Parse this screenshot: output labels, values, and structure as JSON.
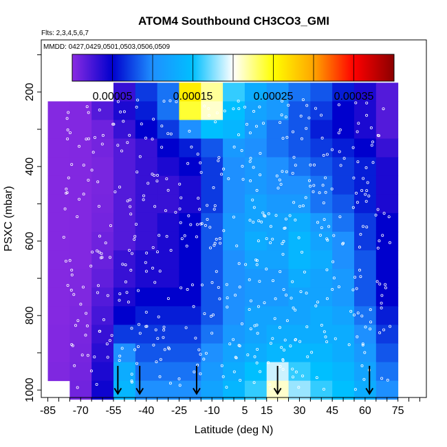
{
  "chart_data": {
    "type": "heatmap",
    "title": "ATOM4 Southbound CH3CO3_GMI",
    "annotations": {
      "flights": "Flts: 2,3,4,5,6,7",
      "dates": "MMDD: 0427,0429,0501,0503,0506,0509"
    },
    "xlabel": "Latitude (deg N)",
    "ylabel": "PSXC (mbar)",
    "xlim": [
      -88,
      88
    ],
    "ylim": [
      1020,
      60
    ],
    "x_ticks": [
      "-85",
      "-70",
      "-55",
      "-40",
      "-25",
      "-10",
      "5",
      "15",
      "30",
      "45",
      "60",
      "75"
    ],
    "y_ticks": [
      "200",
      "400",
      "600",
      "800",
      "1000"
    ],
    "colorbar": {
      "min": 0,
      "max": 0.0004,
      "tick_labels": [
        "0.00005",
        "0.00015",
        "0.00025",
        "0.00035"
      ],
      "colors": [
        "#8a2be2",
        "#0000cd",
        "#1e90ff",
        "#00bfff",
        "#ffffff",
        "#ffff00",
        "#ffa500",
        "#ff0000",
        "#8b0000"
      ]
    },
    "arrow_latitudes": [
      -53,
      -43,
      -17,
      20,
      62
    ],
    "pressure_levels": [
      200,
      250,
      300,
      350,
      400,
      450,
      500,
      550,
      600,
      650,
      700,
      750,
      800,
      850,
      900,
      950,
      1000
    ],
    "latitudes": [
      -80,
      -70,
      -60,
      -50,
      -40,
      -30,
      -20,
      -10,
      0,
      10,
      20,
      30,
      40,
      50,
      60,
      70
    ],
    "values": [
      [
        null,
        null,
        null,
        3e-05,
        7e-05,
        9e-05,
        0.00026,
        0.00022,
        0.00016,
        0.00013,
        0.00011,
        9e-05,
        8e-05,
        6e-05,
        4e-05,
        2e-05
      ],
      [
        2e-06,
        3e-06,
        2e-05,
        4e-05,
        6e-05,
        9e-05,
        0.00024,
        0.00021,
        0.00015,
        0.00012,
        0.00011,
        8e-05,
        7e-05,
        5e-05,
        4e-05,
        2e-05
      ],
      [
        2e-06,
        3e-06,
        1e-05,
        3e-05,
        5e-05,
        7e-05,
        0.0001,
        0.00015,
        0.00014,
        0.00011,
        9e-05,
        8e-05,
        6e-05,
        5e-05,
        4e-05,
        2e-05
      ],
      [
        2e-06,
        3e-06,
        8e-06,
        2e-05,
        3e-05,
        5e-05,
        6e-05,
        8e-05,
        0.00011,
        0.0001,
        9e-05,
        8e-05,
        7e-05,
        6e-05,
        5e-05,
        3e-05
      ],
      [
        2e-06,
        3e-06,
        6e-06,
        2e-05,
        3e-05,
        4e-05,
        5e-05,
        7e-05,
        0.0001,
        0.00011,
        0.0001,
        9e-05,
        8e-05,
        7e-05,
        6e-05,
        4e-05
      ],
      [
        2e-06,
        3e-06,
        6e-06,
        2e-05,
        3e-05,
        3e-05,
        4e-05,
        7e-05,
        0.0001,
        0.00011,
        0.0001,
        0.0001,
        9e-05,
        7e-05,
        6e-05,
        4e-05
      ],
      [
        2e-06,
        3e-06,
        7e-06,
        2e-05,
        3e-05,
        3e-05,
        4e-05,
        7e-05,
        0.0001,
        0.00012,
        0.00011,
        0.00011,
        9e-05,
        8e-05,
        6e-05,
        4e-05
      ],
      [
        2e-06,
        3e-06,
        8e-06,
        2e-05,
        3e-05,
        4e-05,
        5e-05,
        8e-05,
        0.00011,
        0.00012,
        0.00012,
        0.00013,
        0.00011,
        9e-05,
        7e-05,
        5e-05
      ],
      [
        2e-06,
        3e-06,
        1e-05,
        2e-05,
        3e-05,
        4e-05,
        5e-05,
        8e-05,
        0.00011,
        0.00013,
        0.00012,
        0.00014,
        0.00012,
        0.0001,
        7e-05,
        5e-05
      ],
      [
        2e-06,
        3e-06,
        1.2e-05,
        3e-05,
        4e-05,
        4e-05,
        5e-05,
        8e-05,
        0.0001,
        0.00012,
        0.00012,
        0.00014,
        0.00013,
        0.0001,
        8e-05,
        5e-05
      ],
      [
        2e-06,
        4e-06,
        1.5e-05,
        3e-05,
        4e-05,
        4e-05,
        5e-05,
        8e-05,
        0.0001,
        0.00011,
        0.00011,
        0.00013,
        0.00012,
        0.00011,
        8e-05,
        5e-05
      ],
      [
        2e-06,
        4e-06,
        2e-05,
        4e-05,
        5e-05,
        5e-05,
        5e-05,
        8e-05,
        0.0001,
        0.00011,
        0.00011,
        0.00012,
        0.00012,
        0.00011,
        8e-05,
        5e-05
      ],
      [
        2e-06,
        5e-06,
        2.5e-05,
        5e-05,
        6e-05,
        6e-05,
        6e-05,
        8e-05,
        0.0001,
        0.00012,
        0.00012,
        0.00012,
        0.00013,
        0.00012,
        9e-05,
        6e-05
      ],
      [
        3e-06,
        6e-06,
        3e-05,
        7e-05,
        7e-05,
        7e-05,
        7e-05,
        9e-05,
        0.00011,
        0.00012,
        0.00013,
        0.00013,
        0.00013,
        0.00013,
        0.0001,
        7e-05
      ],
      [
        3e-06,
        7e-06,
        3.5e-05,
        0.0001,
        8e-05,
        8e-05,
        8e-05,
        0.0001,
        0.00012,
        0.00013,
        0.00014,
        0.00014,
        0.00014,
        0.00013,
        0.00011,
        8e-05
      ],
      [
        4e-06,
        8e-06,
        4e-05,
        0.00013,
        9e-05,
        9e-05,
        9e-05,
        0.00011,
        0.00013,
        0.00015,
        0.00019,
        0.00016,
        0.00015,
        0.00014,
        0.00012,
        9e-05
      ],
      [
        null,
        9e-06,
        4.5e-05,
        0.00014,
        0.0001,
        0.0001,
        0.0001,
        0.00012,
        0.00014,
        0.00016,
        0.00021,
        0.00018,
        0.00016,
        0.00015,
        0.00013,
        0.0001
      ]
    ]
  }
}
